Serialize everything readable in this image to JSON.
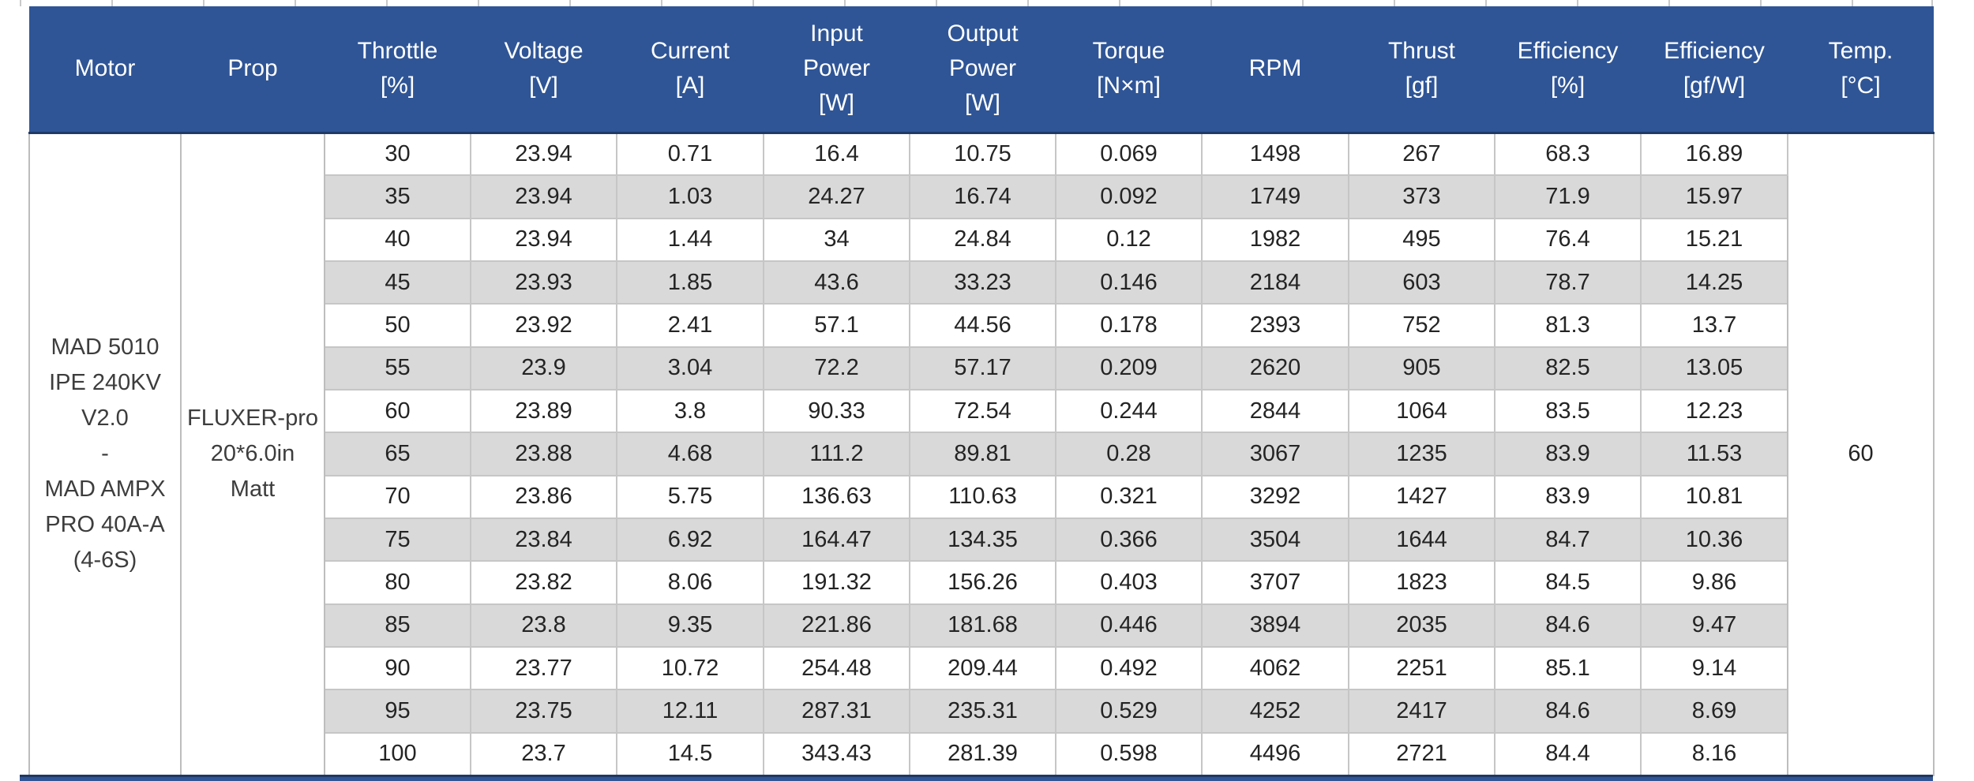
{
  "colors": {
    "header_bg": "#2f5596",
    "header_text": "#ffffff",
    "stripe_bg": "#d9d9d9",
    "grid_line": "#c6c6c6",
    "dark_edge": "#1f3864",
    "body_text": "#242424"
  },
  "table": {
    "columns": [
      {
        "id": "motor",
        "lines": [
          "Motor"
        ]
      },
      {
        "id": "prop",
        "lines": [
          "Prop"
        ]
      },
      {
        "id": "throttle",
        "lines": [
          "Throttle",
          "[%]"
        ]
      },
      {
        "id": "voltage",
        "lines": [
          "Voltage",
          "[V]"
        ]
      },
      {
        "id": "current",
        "lines": [
          "Current",
          "[A]"
        ]
      },
      {
        "id": "input-power",
        "lines": [
          "Input",
          "Power",
          "[W]"
        ]
      },
      {
        "id": "output-power",
        "lines": [
          "Output",
          "Power",
          "[W]"
        ]
      },
      {
        "id": "torque",
        "lines": [
          "Torque",
          "[N×m]"
        ]
      },
      {
        "id": "rpm",
        "lines": [
          "RPM"
        ]
      },
      {
        "id": "thrust",
        "lines": [
          "Thrust",
          "[gf]"
        ]
      },
      {
        "id": "efficiency-pct",
        "lines": [
          "Efficiency",
          "[%]"
        ]
      },
      {
        "id": "efficiency-gfw",
        "lines": [
          "Efficiency",
          "[gf/W]"
        ]
      },
      {
        "id": "temp",
        "lines": [
          "Temp.",
          "[°C]"
        ]
      }
    ],
    "motor": {
      "lines": [
        "MAD 5010",
        "IPE 240KV",
        "V2.0",
        "-",
        "MAD AMPX",
        "PRO 40A-A",
        "(4-6S)"
      ]
    },
    "prop": {
      "lines": [
        "FLUXER-pro",
        "20*6.0in",
        "Matt"
      ]
    },
    "temp_value": "60",
    "rows": [
      [
        "30",
        "23.94",
        "0.71",
        "16.4",
        "10.75",
        "0.069",
        "1498",
        "267",
        "68.3",
        "16.89"
      ],
      [
        "35",
        "23.94",
        "1.03",
        "24.27",
        "16.74",
        "0.092",
        "1749",
        "373",
        "71.9",
        "15.97"
      ],
      [
        "40",
        "23.94",
        "1.44",
        "34",
        "24.84",
        "0.12",
        "1982",
        "495",
        "76.4",
        "15.21"
      ],
      [
        "45",
        "23.93",
        "1.85",
        "43.6",
        "33.23",
        "0.146",
        "2184",
        "603",
        "78.7",
        "14.25"
      ],
      [
        "50",
        "23.92",
        "2.41",
        "57.1",
        "44.56",
        "0.178",
        "2393",
        "752",
        "81.3",
        "13.7"
      ],
      [
        "55",
        "23.9",
        "3.04",
        "72.2",
        "57.17",
        "0.209",
        "2620",
        "905",
        "82.5",
        "13.05"
      ],
      [
        "60",
        "23.89",
        "3.8",
        "90.33",
        "72.54",
        "0.244",
        "2844",
        "1064",
        "83.5",
        "12.23"
      ],
      [
        "65",
        "23.88",
        "4.68",
        "111.2",
        "89.81",
        "0.28",
        "3067",
        "1235",
        "83.9",
        "11.53"
      ],
      [
        "70",
        "23.86",
        "5.75",
        "136.63",
        "110.63",
        "0.321",
        "3292",
        "1427",
        "83.9",
        "10.81"
      ],
      [
        "75",
        "23.84",
        "6.92",
        "164.47",
        "134.35",
        "0.366",
        "3504",
        "1644",
        "84.7",
        "10.36"
      ],
      [
        "80",
        "23.82",
        "8.06",
        "191.32",
        "156.26",
        "0.403",
        "3707",
        "1823",
        "84.5",
        "9.86"
      ],
      [
        "85",
        "23.8",
        "9.35",
        "221.86",
        "181.68",
        "0.446",
        "3894",
        "2035",
        "84.6",
        "9.47"
      ],
      [
        "90",
        "23.77",
        "10.72",
        "254.48",
        "209.44",
        "0.492",
        "4062",
        "2251",
        "85.1",
        "9.14"
      ],
      [
        "95",
        "23.75",
        "12.11",
        "287.31",
        "235.31",
        "0.529",
        "4252",
        "2417",
        "84.6",
        "8.69"
      ],
      [
        "100",
        "23.7",
        "14.5",
        "343.43",
        "281.39",
        "0.598",
        "4496",
        "2721",
        "84.4",
        "8.16"
      ]
    ]
  }
}
